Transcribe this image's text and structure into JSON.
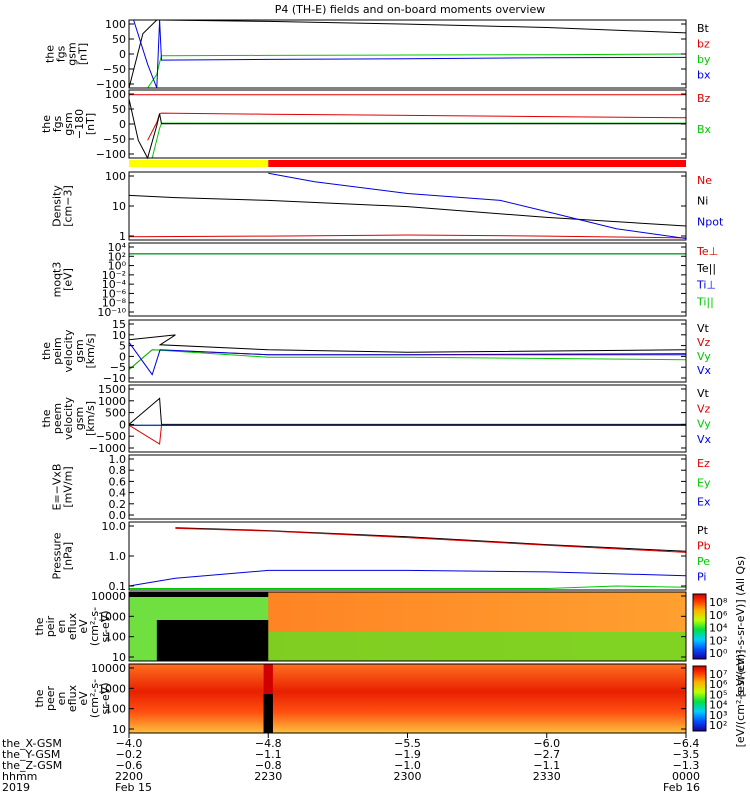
{
  "title": "P4 (TH-E) fields and on-board moments overview",
  "colors": {
    "black": "#000000",
    "red": "#e00000",
    "green": "#00c800",
    "blue": "#0000e0",
    "yellow": "#ffff00",
    "bar_red": "#ff0000"
  },
  "chart_data": [
    {
      "type": "line",
      "panel": "fgs",
      "ylabel": [
        "the",
        "fgs",
        "gsm",
        "[nT]"
      ],
      "yticks": [
        "100",
        "50",
        "0",
        "−50",
        "−100"
      ],
      "ylim": [
        -100,
        100
      ],
      "series": [
        {
          "name": "Bt",
          "color": "#000000",
          "x": [
            2200,
            2203,
            2206,
            2206.7,
            2230,
            2300,
            2330,
            2400
          ],
          "y": [
            -100,
            60,
            100,
            100,
            96,
            88,
            78,
            62
          ]
        },
        {
          "name": "bz",
          "color": "#e00000",
          "x": [
            2200,
            2400
          ],
          "y": [
            -120,
            -120
          ]
        },
        {
          "name": "by",
          "color": "#00c800",
          "x": [
            2200,
            2204,
            2206,
            2206.6,
            2207,
            2230,
            2300,
            2330,
            2400
          ],
          "y": [
            -100,
            -100,
            -60,
            -25,
            -5,
            -4,
            -3,
            -2,
            0
          ]
        },
        {
          "name": "bx",
          "color": "#0000e0",
          "x": [
            2201,
            2204,
            2206,
            2206.6,
            2207,
            2230,
            2300,
            2330,
            2400
          ],
          "y": [
            100,
            -30,
            -100,
            100,
            -18,
            -16,
            -14,
            -11,
            -10
          ]
        }
      ],
      "legend": [
        "Bt",
        "bz",
        "by",
        "bx"
      ]
    },
    {
      "type": "line",
      "panel": "fgs_dsl",
      "ylabel": [
        "the",
        "fgs",
        "gsm",
        "−180",
        "[nT]"
      ],
      "yticks": [
        "100",
        "50",
        "0",
        "−50",
        "−100"
      ],
      "ylim": [
        -120,
        110
      ],
      "series": [
        {
          "name": "Bz",
          "color": "#e00000",
          "x": [
            2204,
            2206,
            2206.6,
            2207,
            2230,
            2300,
            2330,
            2400
          ],
          "y": [
            -60,
            0,
            30,
            32,
            28,
            24,
            20,
            16
          ]
        },
        {
          "name": "Bx",
          "color": "#00c800",
          "x": [
            2205,
            2206.6,
            2207,
            2230,
            2300,
            2330,
            2400
          ],
          "y": [
            -120,
            -20,
            -2,
            -2,
            -2,
            -2,
            -2
          ]
        },
        {
          "name": "Bt",
          "color": "#000000",
          "x": [
            2200,
            2202,
            2204,
            2206,
            2206.6,
            2207,
            2400
          ],
          "y": [
            80,
            -60,
            -120,
            -10,
            30,
            -4,
            -4
          ]
        }
      ],
      "legend": [
        "Bz",
        "Bx"
      ]
    },
    {
      "type": "bar",
      "panel": "mode_bar",
      "segments": [
        {
          "from": 2200,
          "to": 2230,
          "color": "#ffff00"
        },
        {
          "from": 2230,
          "to": 2400,
          "color": "#ff0000"
        }
      ]
    },
    {
      "type": "line",
      "panel": "density",
      "ylabel": [
        "Density",
        "[cm−3]"
      ],
      "yticks": [
        "100",
        "10",
        "1"
      ],
      "ylim_log": [
        0.8,
        200
      ],
      "series": [
        {
          "name": "Ne",
          "color": "#e00000",
          "x": [
            2200,
            2230,
            2300,
            2330,
            2400
          ],
          "y": [
            1.05,
            1.1,
            1.2,
            1.1,
            0.95
          ]
        },
        {
          "name": "Ni",
          "color": "#000000",
          "x": [
            2200,
            2210,
            2230,
            2300,
            2330,
            2400
          ],
          "y": [
            30,
            25,
            20,
            12,
            5,
            2.5
          ]
        },
        {
          "name": "Npot",
          "color": "#0000e0",
          "x": [
            2230,
            2240,
            2300,
            2320,
            2330,
            2345,
            2400
          ],
          "y": [
            180,
            90,
            35,
            20,
            8,
            2,
            0.9
          ]
        }
      ],
      "legend": [
        "Ne",
        "Ni",
        "Npot"
      ]
    },
    {
      "type": "line",
      "panel": "temp",
      "ylabel": [
        "moqt3",
        "[eV]"
      ],
      "yticks": [
        "10⁴",
        "10²",
        "10⁰",
        "10⁻²",
        "10⁻⁴",
        "10⁻⁶",
        "10⁻⁸",
        "10⁻¹⁰"
      ],
      "series": [
        {
          "name": "Te⊥",
          "color": "#e00000",
          "x": [
            2200,
            2400
          ],
          "y": [
            3,
            3
          ]
        },
        {
          "name": "Te||",
          "color": "#000000",
          "x": [
            2200,
            2400
          ],
          "y": [
            4,
            4
          ]
        },
        {
          "name": "Ti⊥",
          "color": "#0000e0",
          "x": [
            2200,
            2400
          ],
          "y": [
            2,
            2
          ]
        },
        {
          "name": "Ti||",
          "color": "#00c800",
          "x": [
            2200,
            2400
          ],
          "y": [
            2,
            2
          ]
        }
      ],
      "legend": [
        "Te⊥",
        "Te||",
        "Ti⊥",
        "Ti||"
      ]
    },
    {
      "type": "line",
      "panel": "peim_velocity",
      "ylabel": [
        "the",
        "peim",
        "velocity",
        "gsm",
        "[km/s]"
      ],
      "yticks": [
        "15",
        "10",
        "5",
        "0",
        "−5",
        "−10"
      ],
      "ylim": [
        -10,
        15
      ],
      "series": [
        {
          "name": "Vt",
          "color": "#000000",
          "x": [
            2200,
            2210,
            2206.7,
            2230,
            2300,
            2400
          ],
          "y": [
            7,
            9,
            5,
            3,
            2,
            3
          ]
        },
        {
          "name": "Vz",
          "color": "#e00000",
          "x": [
            2200,
            2205,
            2230,
            2300,
            2400
          ],
          "y": [
            -5,
            3,
            1,
            1,
            1.5
          ]
        },
        {
          "name": "Vy",
          "color": "#00c800",
          "x": [
            2200,
            2205,
            2230,
            2300,
            2400
          ],
          "y": [
            -5,
            3,
            0,
            0,
            -1
          ]
        },
        {
          "name": "Vx",
          "color": "#0000e0",
          "x": [
            2200,
            2205,
            2206.7,
            2230,
            2300,
            2400
          ],
          "y": [
            6,
            -7,
            3,
            1,
            1,
            1
          ]
        }
      ],
      "legend": [
        "Vt",
        "Vz",
        "Vy",
        "Vx"
      ]
    },
    {
      "type": "line",
      "panel": "peem_velocity",
      "ylabel": [
        "the",
        "peem",
        "velocity",
        "gsm",
        "[km/s]"
      ],
      "yticks": [
        "1500",
        "1000",
        "500",
        "0",
        "−500",
        "−1000"
      ],
      "ylim": [
        -1000,
        1500
      ],
      "series": [
        {
          "name": "Vt",
          "color": "#000000",
          "x": [
            2200,
            2206.6,
            2207,
            2400
          ],
          "y": [
            30,
            1000,
            30,
            30
          ]
        },
        {
          "name": "Vz",
          "color": "#e00000",
          "x": [
            2200,
            2206.6,
            2207,
            2400
          ],
          "y": [
            0,
            -700,
            0,
            0
          ]
        },
        {
          "name": "Vy",
          "color": "#00c800",
          "x": [
            2200,
            2400
          ],
          "y": [
            0,
            0
          ]
        },
        {
          "name": "Vx",
          "color": "#0000e0",
          "x": [
            2200,
            2400
          ],
          "y": [
            0,
            0
          ]
        }
      ],
      "legend": [
        "Vt",
        "Vz",
        "Vy",
        "Vx"
      ]
    },
    {
      "type": "line",
      "panel": "efield",
      "ylabel": [
        "E=−VxB",
        "[mV/m]"
      ],
      "yticks": [
        "1.0",
        "0.8",
        "0.6",
        "0.4",
        "0.2",
        "0.0"
      ],
      "ylim": [
        0,
        1
      ],
      "series": [],
      "legend": [
        "Ez",
        "Ey",
        "Ex"
      ]
    },
    {
      "type": "line",
      "panel": "pressure",
      "ylabel": [
        "Pressure",
        "[nPa]"
      ],
      "yticks": [
        "10.0",
        "1.0",
        "0.1"
      ],
      "ylim_log": [
        0.07,
        30
      ],
      "series": [
        {
          "name": "Pt",
          "color": "#000000",
          "x": [
            2210,
            2230,
            2300,
            2330,
            2400
          ],
          "y": [
            18,
            14,
            8,
            4,
            2.2
          ]
        },
        {
          "name": "Pb",
          "color": "#e00000",
          "x": [
            2210,
            2230,
            2300,
            2330,
            2400
          ],
          "y": [
            17,
            13.5,
            7.5,
            3.8,
            2
          ]
        },
        {
          "name": "Pe",
          "color": "#00c800",
          "x": [
            2200,
            2230,
            2300,
            2330,
            2345,
            2400
          ],
          "y": [
            0.08,
            0.08,
            0.08,
            0.08,
            0.1,
            0.09
          ]
        },
        {
          "name": "Pi",
          "color": "#0000e0",
          "x": [
            2200,
            2210,
            2230,
            2300,
            2330,
            2400
          ],
          "y": [
            0.1,
            0.2,
            0.4,
            0.4,
            0.35,
            0.25
          ]
        }
      ],
      "legend": [
        "Pt",
        "Pb",
        "Pe",
        "Pi"
      ]
    },
    {
      "type": "heatmap",
      "panel": "peir_eflux",
      "ylabel": [
        "the",
        "peir",
        "en",
        "eflux",
        "eV",
        "(cm²-s-",
        "sr-eV)"
      ],
      "yticks": [
        "10000",
        "1000",
        "100",
        "10"
      ],
      "colorbar_ticks": [
        "10⁸",
        "10⁶",
        "10⁴",
        "10²",
        "10⁰"
      ],
      "colorbar_label": "[eV/(cm²-s-sr-eV)] (All Qs)"
    },
    {
      "type": "heatmap",
      "panel": "peer_eflux",
      "ylabel": [
        "the",
        "peer",
        "en",
        "eflux",
        "eV",
        "(cm²-s-",
        "sr-eV)"
      ],
      "yticks": [
        "10000",
        "1000",
        "100",
        "10"
      ],
      "colorbar_ticks": [
        "10⁷",
        "10⁶",
        "10⁵",
        "10⁴",
        "10³",
        "10²"
      ],
      "colorbar_label": "[eV/(cm²-s-sr-eV)]"
    }
  ],
  "x_axis": {
    "row_labels": [
      "the_X-GSM",
      "the_Y-GSM",
      "the_Z-GSM",
      "hhmm",
      "2019"
    ],
    "ticks": [
      {
        "x": 2200,
        "vals": [
          "−4.0",
          "−0.2",
          "−0.6",
          "2200",
          "Feb 15"
        ]
      },
      {
        "x": 2230,
        "vals": [
          "−4.8",
          "−1.1",
          "−0.8",
          "2230",
          ""
        ]
      },
      {
        "x": 2300,
        "vals": [
          "−5.5",
          "−1.9",
          "−1.0",
          "2300",
          ""
        ]
      },
      {
        "x": 2330,
        "vals": [
          "−6.0",
          "−2.7",
          "−1.1",
          "2330",
          ""
        ]
      },
      {
        "x": 2400,
        "vals": [
          "−6.4",
          "−3.5",
          "−1.3",
          "0000",
          "Feb 16"
        ]
      }
    ]
  }
}
